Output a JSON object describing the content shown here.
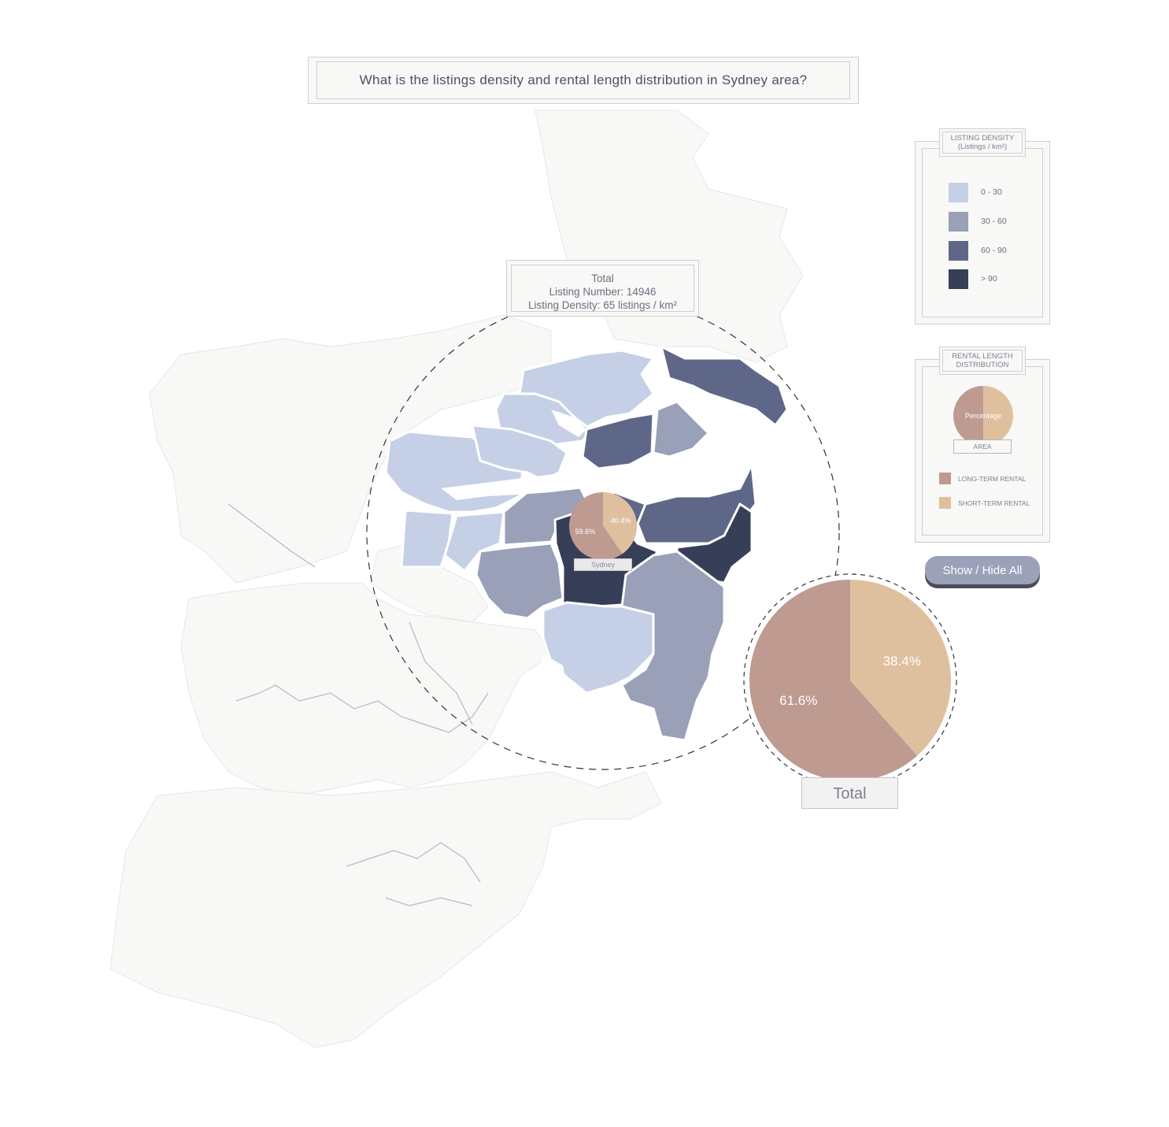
{
  "title": "What is the listings density and rental length distribution in Sydney area?",
  "total_summary": {
    "heading": "Total",
    "listing_number": "Listing Number: 14946",
    "listing_density": "Listing Density: 65 listings / km²"
  },
  "density_legend": {
    "title_line1": "LISTING DENSITY",
    "title_line2": "(Listings / km²)",
    "items": [
      {
        "label": "0 - 30",
        "color": "#c5cfe6"
      },
      {
        "label": "30 - 60",
        "color": "#99a0b8"
      },
      {
        "label": "60 - 90",
        "color": "#5e6788"
      },
      {
        "label": "> 90",
        "color": "#363f57"
      }
    ]
  },
  "rental_legend": {
    "title_line1": "RENTAL LENGTH",
    "title_line2": "DISTRIBUTION",
    "pie_text": "Percentage",
    "area_text": "AREA",
    "items": [
      {
        "label": "LONG-TERM RENTAL",
        "color": "#be9a90"
      },
      {
        "label": "SHORT-TERM RENTAL",
        "color": "#dfc09e"
      }
    ]
  },
  "show_hide_button": "Show / Hide All",
  "colors": {
    "long_term": "#be9a90",
    "short_term": "#dfc09e",
    "land": "#f8f8f7",
    "land_border": "#e6e6e4"
  },
  "chart_data": [
    {
      "type": "pie",
      "area": "Sydney",
      "categories": [
        "LONG-TERM RENTAL",
        "SHORT-TERM RENTAL"
      ],
      "values": [
        59.6,
        40.4
      ],
      "labels": [
        "59.6%",
        "40.4%"
      ]
    },
    {
      "type": "pie",
      "area": "Total",
      "categories": [
        "LONG-TERM RENTAL",
        "SHORT-TERM RENTAL"
      ],
      "values": [
        61.6,
        38.4
      ],
      "labels": [
        "61.6%",
        "38.4%"
      ]
    }
  ]
}
